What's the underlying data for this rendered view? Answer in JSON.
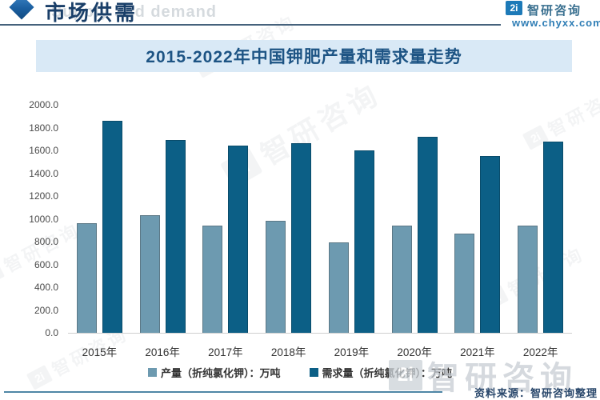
{
  "header": {
    "section_title": "市场供需",
    "section_subtitle": "Supply and demand",
    "brand": {
      "name": "智研咨询",
      "url": "www.chyxx.com",
      "logo_glyph": "2i"
    }
  },
  "chart_data": {
    "type": "bar",
    "title": "2015-2022年中国钾肥产量和需求量走势",
    "categories": [
      "2015年",
      "2016年",
      "2017年",
      "2018年",
      "2019年",
      "2020年",
      "2021年",
      "2022年"
    ],
    "series": [
      {
        "name": "产量（折纯氯化钾）：万吨",
        "color": "#6d9ab0",
        "border": "#5c7886",
        "values": [
          960,
          1030,
          940,
          980,
          790,
          940,
          870,
          940
        ]
      },
      {
        "name": "需求量（折纯氯化钾）：万吨",
        "color": "#0c5f86",
        "border": "#0a4b6a",
        "values": [
          1860,
          1690,
          1640,
          1660,
          1600,
          1720,
          1550,
          1680
        ]
      }
    ],
    "xlabel": "",
    "ylabel": "",
    "ylim": [
      0,
      2000
    ],
    "yticks": [
      "2000.0",
      "1800.0",
      "1600.0",
      "1400.0",
      "1200.0",
      "1000.0",
      "800.0",
      "600.0",
      "400.0",
      "200.0",
      "0.0"
    ],
    "grid": false,
    "legend_position": "bottom"
  },
  "footer": {
    "source_label": "资料来源：智研咨询整理"
  },
  "watermark": {
    "brand_text": "智研咨询"
  }
}
